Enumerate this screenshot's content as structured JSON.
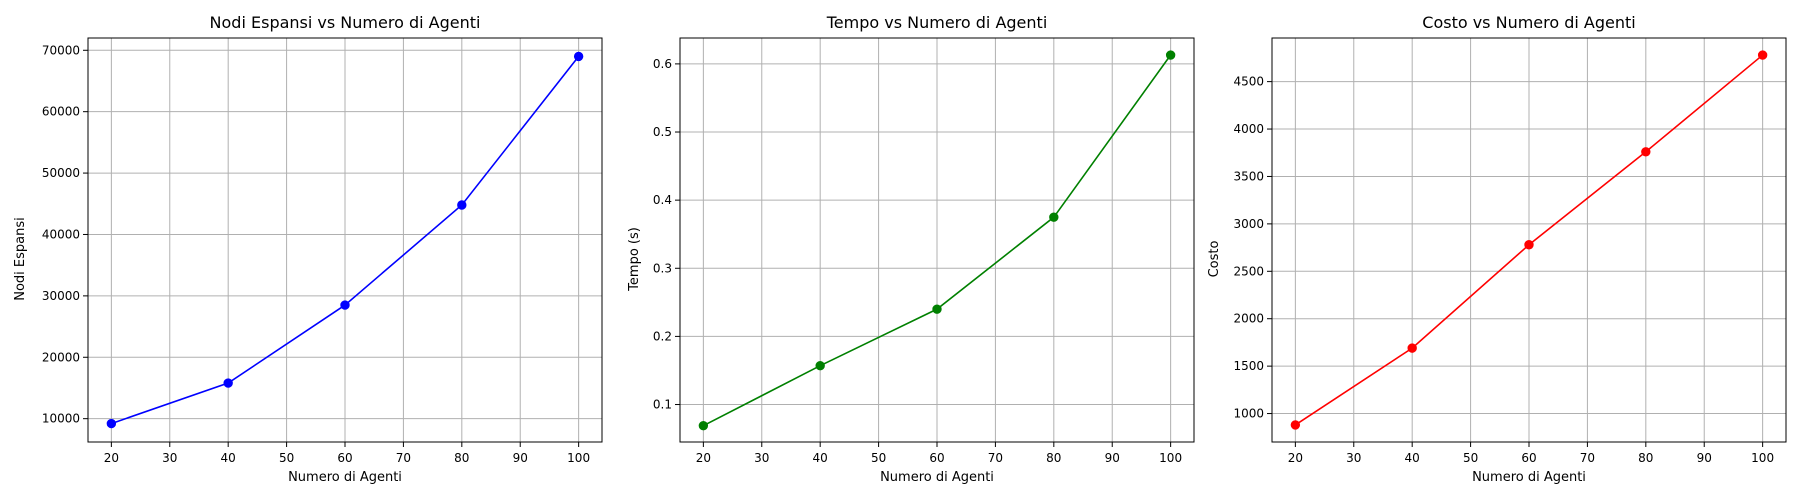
{
  "chart_data": [
    {
      "type": "line",
      "title": "Nodi Espansi vs Numero di Agenti",
      "xlabel": "Numero di Agenti",
      "ylabel": "Nodi Espansi",
      "x": [
        20,
        40,
        60,
        80,
        100
      ],
      "series": [
        {
          "values": [
            9200,
            15800,
            28500,
            44800,
            69000
          ],
          "color": "#0000ff"
        }
      ],
      "xlim": [
        16,
        104
      ],
      "ylim": [
        6200,
        72000
      ],
      "xticks": [
        20,
        30,
        40,
        50,
        60,
        70,
        80,
        90,
        100
      ],
      "yticks": [
        10000,
        20000,
        30000,
        40000,
        50000,
        60000,
        70000
      ],
      "xtick_labels": [
        "20",
        "30",
        "40",
        "50",
        "60",
        "70",
        "80",
        "90",
        "100"
      ],
      "ytick_labels": [
        "10000",
        "20000",
        "30000",
        "40000",
        "50000",
        "60000",
        "70000"
      ],
      "grid": true,
      "marker": "circle"
    },
    {
      "type": "line",
      "title": "Tempo vs Numero di Agenti",
      "xlabel": "Numero di Agenti",
      "ylabel": "Tempo (s)",
      "x": [
        20,
        40,
        60,
        80,
        100
      ],
      "series": [
        {
          "values": [
            0.069,
            0.157,
            0.24,
            0.375,
            0.613
          ],
          "color": "#008000"
        }
      ],
      "xlim": [
        16,
        104
      ],
      "ylim": [
        0.045,
        0.638
      ],
      "xticks": [
        20,
        30,
        40,
        50,
        60,
        70,
        80,
        90,
        100
      ],
      "yticks": [
        0.1,
        0.2,
        0.3,
        0.4,
        0.5,
        0.6
      ],
      "xtick_labels": [
        "20",
        "30",
        "40",
        "50",
        "60",
        "70",
        "80",
        "90",
        "100"
      ],
      "ytick_labels": [
        "0.1",
        "0.2",
        "0.3",
        "0.4",
        "0.5",
        "0.6"
      ],
      "grid": true,
      "marker": "circle"
    },
    {
      "type": "line",
      "title": "Costo vs Numero di Agenti",
      "xlabel": "Numero di Agenti",
      "ylabel": "Costo",
      "x": [
        20,
        40,
        60,
        80,
        100
      ],
      "series": [
        {
          "values": [
            880,
            1690,
            2780,
            3760,
            4780
          ],
          "color": "#ff0000"
        }
      ],
      "xlim": [
        16,
        104
      ],
      "ylim": [
        700,
        4960
      ],
      "xticks": [
        20,
        30,
        40,
        50,
        60,
        70,
        80,
        90,
        100
      ],
      "yticks": [
        1000,
        1500,
        2000,
        2500,
        3000,
        3500,
        4000,
        4500
      ],
      "xtick_labels": [
        "20",
        "30",
        "40",
        "50",
        "60",
        "70",
        "80",
        "90",
        "100"
      ],
      "ytick_labels": [
        "1000",
        "1500",
        "2000",
        "2500",
        "3000",
        "3500",
        "4000",
        "4500"
      ],
      "grid": true,
      "marker": "circle"
    }
  ]
}
